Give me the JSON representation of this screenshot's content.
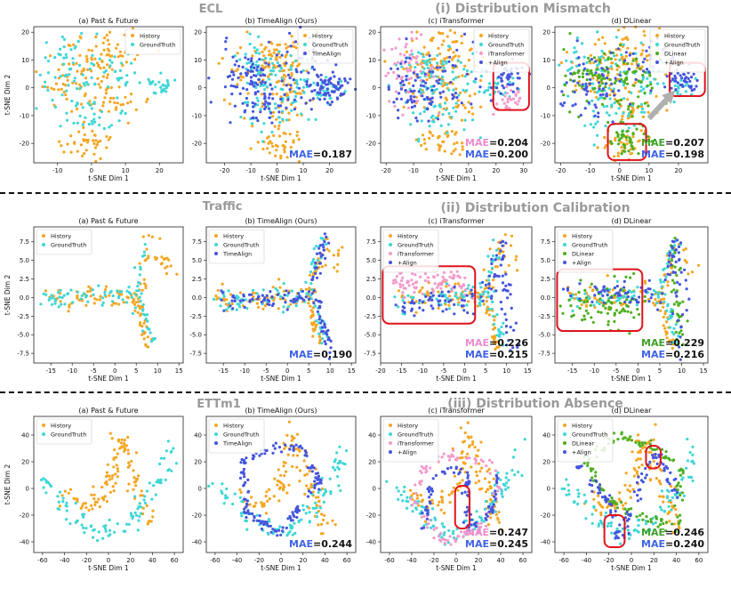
{
  "figure": {
    "rows": [
      {
        "dataset": "ECL",
        "section": "(i) Distribution Mismatch"
      },
      {
        "dataset": "Traffic",
        "section": "(ii) Distribution Calibration"
      },
      {
        "dataset": "ETTm1",
        "section": "(iii) Distribution Absence"
      }
    ]
  },
  "colors": {
    "History": "#f5a623",
    "GroundTruth": "#3fd6d6",
    "TimeAlign": "#4455dd",
    "iTransformer": "#f29acb",
    "DLinear": "#4caf1e",
    "+Align": "#4455dd",
    "box": "#e0121b",
    "mae_label_pink": "#ee8ccf",
    "mae_label_green": "#3ea02a",
    "mae_label_blue": "#3f63e8"
  },
  "chart_data": [
    {
      "type": "scatter",
      "title": "(a) Past & Future",
      "xlabel": "t-SNE Dim 1",
      "ylabel": "t-SNE Dim 2",
      "xlim": [
        -17,
        27
      ],
      "ylim": [
        -27,
        22
      ],
      "xticks": [
        -10,
        0,
        10,
        20
      ],
      "yticks": [
        -20,
        -10,
        0,
        10,
        20
      ],
      "legend": [
        "History",
        "GroundTruth"
      ],
      "legend_position": "top-right",
      "series": [
        {
          "name": "History",
          "shape": "ecl_hist"
        },
        {
          "name": "GroundTruth",
          "shape": "ecl_gt"
        }
      ]
    },
    {
      "type": "scatter",
      "title": "(b) TimeAlign (Ours)",
      "xlabel": "t-SNE Dim 1",
      "xlim": [
        -27,
        30
      ],
      "ylim": [
        -27,
        22
      ],
      "xticks": [
        -20,
        -10,
        0,
        10,
        20
      ],
      "yticks": [
        -20,
        -10,
        0,
        10,
        20
      ],
      "legend": [
        "History",
        "GroundTruth",
        "TimeAlign"
      ],
      "legend_position": "top-right",
      "mae": [
        {
          "label": "MAE",
          "value": "=0.187",
          "color": "mae_label_blue"
        }
      ],
      "series": [
        {
          "name": "History",
          "shape": "ecl_hist"
        },
        {
          "name": "GroundTruth",
          "shape": "ecl_gt"
        },
        {
          "name": "TimeAlign",
          "shape": "ecl_ta"
        }
      ]
    },
    {
      "type": "scatter",
      "title": "(c) iTransformer",
      "xlabel": "t-SNE Dim 1",
      "xlim": [
        -22,
        33
      ],
      "ylim": [
        -27,
        22
      ],
      "xticks": [
        -20,
        -10,
        0,
        10,
        20,
        30
      ],
      "yticks": [
        -20,
        -10,
        0,
        10,
        20
      ],
      "legend": [
        "History",
        "GroundTruth",
        "iTransformer",
        "+Align"
      ],
      "legend_position": "top-right",
      "mae": [
        {
          "label": "MAE",
          "value": "=0.204",
          "color": "mae_label_pink"
        },
        {
          "label": "MAE",
          "value": "=0.200",
          "color": "mae_label_blue"
        }
      ],
      "boxes": [
        [
          19,
          -8,
          32,
          9
        ]
      ],
      "series": [
        {
          "name": "History",
          "shape": "ecl_hist"
        },
        {
          "name": "GroundTruth",
          "shape": "ecl_gt"
        },
        {
          "name": "iTransformer",
          "shape": "ecl_it"
        },
        {
          "name": "+Align",
          "shape": "ecl_al"
        }
      ]
    },
    {
      "type": "scatter",
      "title": "(d) DLinear",
      "xlabel": "t-SNE Dim 1",
      "xlim": [
        -22,
        30
      ],
      "ylim": [
        -27,
        22
      ],
      "xticks": [
        -20,
        -10,
        0,
        10,
        20
      ],
      "yticks": [
        -20,
        -10,
        0,
        10,
        20
      ],
      "legend": [
        "History",
        "GroundTruth",
        "DLinear",
        "+Align"
      ],
      "legend_position": "top-right",
      "mae": [
        {
          "label": "MAE",
          "value": "=0.207",
          "color": "mae_label_green"
        },
        {
          "label": "MAE",
          "value": "=0.198",
          "color": "mae_label_blue"
        }
      ],
      "boxes": [
        [
          -4,
          -26,
          9,
          -13
        ],
        [
          17,
          -3,
          29,
          9
        ]
      ],
      "arrow": [
        [
          10,
          -11
        ],
        [
          17,
          -3
        ]
      ],
      "series": [
        {
          "name": "History",
          "shape": "ecl_hist"
        },
        {
          "name": "GroundTruth",
          "shape": "ecl_gt"
        },
        {
          "name": "DLinear",
          "shape": "ecl_dl"
        },
        {
          "name": "+Align",
          "shape": "ecl_al2"
        }
      ]
    },
    {
      "type": "scatter",
      "title": "(a) Past & Future",
      "xlabel": "t-SNE Dim 1",
      "ylabel": "t-SNE Dim 2",
      "xlim": [
        -19,
        16
      ],
      "ylim": [
        -8.8,
        9.5
      ],
      "xticks": [
        -15,
        -10,
        -5,
        0,
        5,
        10,
        15
      ],
      "yticks": [
        -7.5,
        -5.0,
        -2.5,
        0.0,
        2.5,
        5.0,
        7.5
      ],
      "legend": [
        "History",
        "GroundTruth"
      ],
      "legend_position": "top-left",
      "series": [
        {
          "name": "History",
          "shape": "tr_hist"
        },
        {
          "name": "GroundTruth",
          "shape": "tr_gt"
        }
      ]
    },
    {
      "type": "scatter",
      "title": "(b) TimeAlign (Ours)",
      "xlabel": "t-SNE Dim 1",
      "xlim": [
        -19,
        16
      ],
      "ylim": [
        -8.8,
        9.5
      ],
      "xticks": [
        -15,
        -10,
        -5,
        0,
        5,
        10,
        15
      ],
      "yticks": [
        -7.5,
        -5.0,
        -2.5,
        0.0,
        2.5,
        5.0,
        7.5
      ],
      "legend": [
        "History",
        "GroundTruth",
        "TimeAlign"
      ],
      "legend_position": "top-left",
      "mae": [
        {
          "label": "MAE",
          "value": "=0.190",
          "color": "mae_label_blue"
        }
      ],
      "series": [
        {
          "name": "History",
          "shape": "tr_hist"
        },
        {
          "name": "GroundTruth",
          "shape": "tr_gt"
        },
        {
          "name": "TimeAlign",
          "shape": "tr_ta"
        }
      ]
    },
    {
      "type": "scatter",
      "title": "(c) iTransformer",
      "xlabel": "t-SNE Dim 1",
      "xlim": [
        -20,
        16
      ],
      "ylim": [
        -8.8,
        9.5
      ],
      "xticks": [
        -20,
        -15,
        -10,
        -5,
        0,
        5,
        10,
        15
      ],
      "yticks": [
        -7.5,
        -5.0,
        -2.5,
        0.0,
        2.5,
        5.0,
        7.5
      ],
      "legend": [
        "History",
        "GroundTruth",
        "iTransformer",
        "+Align"
      ],
      "legend_position": "top-left",
      "mae": [
        {
          "label": "MAE",
          "value": "=0.226",
          "color": "mae_label_pink"
        },
        {
          "label": "MAE",
          "value": "=0.215",
          "color": "mae_label_blue"
        }
      ],
      "boxes": [
        [
          -19.5,
          -3.5,
          2.5,
          4.2
        ]
      ],
      "series": [
        {
          "name": "History",
          "shape": "tr_hist"
        },
        {
          "name": "GroundTruth",
          "shape": "tr_gt"
        },
        {
          "name": "iTransformer",
          "shape": "tr_it"
        },
        {
          "name": "+Align",
          "shape": "tr_al"
        }
      ]
    },
    {
      "type": "scatter",
      "title": "(d) DLinear",
      "xlabel": "t-SNE Dim 1",
      "xlim": [
        -19,
        16
      ],
      "ylim": [
        -8.8,
        9.5
      ],
      "xticks": [
        -15,
        -10,
        -5,
        0,
        5,
        10,
        15
      ],
      "yticks": [
        -7.5,
        -5.0,
        -2.5,
        0.0,
        2.5,
        5.0,
        7.5
      ],
      "legend": [
        "History",
        "GroundTruth",
        "DLinear",
        "+Align"
      ],
      "legend_position": "top-left",
      "mae": [
        {
          "label": "MAE",
          "value": "=0.229",
          "color": "mae_label_green"
        },
        {
          "label": "MAE",
          "value": "=0.216",
          "color": "mae_label_blue"
        }
      ],
      "boxes": [
        [
          -18.5,
          -4.5,
          1,
          3.8
        ]
      ],
      "series": [
        {
          "name": "History",
          "shape": "tr_hist"
        },
        {
          "name": "GroundTruth",
          "shape": "tr_gt"
        },
        {
          "name": "DLinear",
          "shape": "tr_dl"
        },
        {
          "name": "+Align",
          "shape": "tr_al2"
        }
      ]
    },
    {
      "type": "scatter",
      "title": "(a) Past & Future",
      "xlabel": "t-SNE Dim 1",
      "ylabel": "t-SNE Dim 2",
      "xlim": [
        -68,
        68
      ],
      "ylim": [
        -48,
        54
      ],
      "xticks": [
        -60,
        -40,
        -20,
        0,
        20,
        40,
        60
      ],
      "yticks": [
        -40,
        -20,
        0,
        20,
        40
      ],
      "legend": [
        "History",
        "GroundTruth"
      ],
      "legend_position": "top-left",
      "series": [
        {
          "name": "History",
          "shape": "et_hist"
        },
        {
          "name": "GroundTruth",
          "shape": "et_gt"
        }
      ]
    },
    {
      "type": "scatter",
      "title": "(b) TimeAlign (Ours)",
      "xlabel": "t-SNE Dim 1",
      "xlim": [
        -68,
        68
      ],
      "ylim": [
        -48,
        54
      ],
      "xticks": [
        -60,
        -40,
        -20,
        0,
        20,
        40,
        60
      ],
      "yticks": [
        -40,
        -20,
        0,
        20,
        40
      ],
      "legend": [
        "History",
        "GroundTruth",
        "TimeAlign"
      ],
      "legend_position": "top-left",
      "mae": [
        {
          "label": "MAE",
          "value": "=0.244",
          "color": "mae_label_blue"
        }
      ],
      "series": [
        {
          "name": "History",
          "shape": "et_hist"
        },
        {
          "name": "GroundTruth",
          "shape": "et_gt"
        },
        {
          "name": "TimeAlign",
          "shape": "et_ta"
        }
      ]
    },
    {
      "type": "scatter",
      "title": "(c) iTransformer",
      "xlabel": "t-SNE Dim 1",
      "xlim": [
        -68,
        68
      ],
      "ylim": [
        -48,
        54
      ],
      "xticks": [
        -60,
        -40,
        -20,
        0,
        20,
        40,
        60
      ],
      "yticks": [
        -40,
        -20,
        0,
        20,
        40
      ],
      "legend": [
        "History",
        "GroundTruth",
        "iTransformer",
        "+Align"
      ],
      "legend_position": "top-left",
      "mae": [
        {
          "label": "MAE",
          "value": "=0.247",
          "color": "mae_label_pink"
        },
        {
          "label": "MAE",
          "value": "=0.245",
          "color": "mae_label_blue"
        }
      ],
      "boxes": [
        [
          -1,
          -30,
          12,
          2
        ]
      ],
      "series": [
        {
          "name": "History",
          "shape": "et_hist"
        },
        {
          "name": "GroundTruth",
          "shape": "et_gt"
        },
        {
          "name": "iTransformer",
          "shape": "et_it"
        },
        {
          "name": "+Align",
          "shape": "et_al"
        }
      ]
    },
    {
      "type": "scatter",
      "title": "(d) DLinear",
      "xlabel": "t-SNE Dim 1",
      "xlim": [
        -68,
        68
      ],
      "ylim": [
        -48,
        54
      ],
      "xticks": [
        -60,
        -40,
        -20,
        0,
        20,
        40,
        60
      ],
      "yticks": [
        -40,
        -20,
        0,
        20,
        40
      ],
      "legend": [
        "History",
        "GroundTruth",
        "DLinear",
        "+Align"
      ],
      "legend_position": "top-left",
      "mae": [
        {
          "label": "MAE",
          "value": "=0.246",
          "color": "mae_label_green"
        },
        {
          "label": "MAE",
          "value": "=0.240",
          "color": "mae_label_blue"
        }
      ],
      "boxes": [
        [
          13,
          15,
          26,
          32
        ],
        [
          -24,
          -44,
          -6,
          -20
        ]
      ],
      "series": [
        {
          "name": "History",
          "shape": "et_hist"
        },
        {
          "name": "GroundTruth",
          "shape": "et_gt"
        },
        {
          "name": "DLinear",
          "shape": "et_dl"
        },
        {
          "name": "+Align",
          "shape": "et_al2"
        }
      ]
    }
  ]
}
